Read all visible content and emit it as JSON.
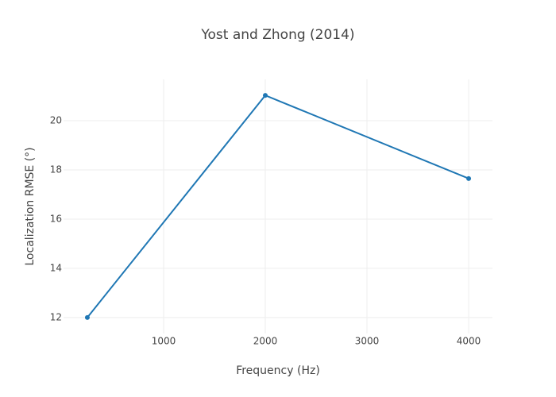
{
  "chart_data": {
    "type": "line",
    "title": "Yost and Zhong (2014)",
    "x_label": "Frequency (Hz)",
    "y_label": "Localization RMSE (°)",
    "series": [
      {
        "color": "#1f77b4",
        "x": [
          250,
          2000,
          4000
        ],
        "values": [
          12.0,
          21.03,
          17.65
        ]
      }
    ],
    "xlim": [
      16,
      4234
    ],
    "ylim": [
      11.35,
      21.68
    ],
    "xticks": [
      1000,
      2000,
      3000,
      4000
    ],
    "yticks": [
      12,
      14,
      16,
      18,
      20
    ],
    "grid": true
  }
}
